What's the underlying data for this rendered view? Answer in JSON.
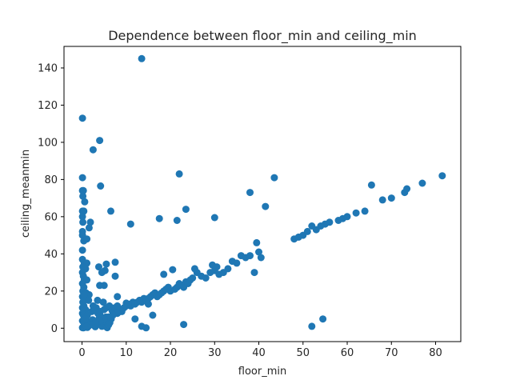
{
  "chart_data": {
    "type": "scatter",
    "title": "Dependence between floor_min and ceiling_min",
    "xlabel": "floor_min",
    "ylabel": "ceiling_meanmin",
    "xlim": [
      -4.08,
      85.7
    ],
    "ylim": [
      -7.2,
      151.6
    ],
    "xticks": [
      0,
      10,
      20,
      30,
      40,
      50,
      60,
      70,
      80
    ],
    "yticks": [
      0,
      20,
      40,
      60,
      80,
      100,
      120,
      140
    ],
    "grid": false,
    "legend": "none",
    "marker_color": "#1f77b4",
    "series": [
      {
        "points": [
          [
            0.1,
            113
          ],
          [
            0.1,
            81
          ],
          [
            0.1,
            74
          ],
          [
            0.3,
            74
          ],
          [
            0.2,
            71
          ],
          [
            0.6,
            68
          ],
          [
            0.1,
            63
          ],
          [
            0.4,
            63
          ],
          [
            0.1,
            60
          ],
          [
            0.2,
            57
          ],
          [
            1.9,
            57
          ],
          [
            0.1,
            52
          ],
          [
            1.6,
            54
          ],
          [
            0.1,
            50
          ],
          [
            0.4,
            47
          ],
          [
            1.1,
            48
          ],
          [
            0.1,
            42
          ],
          [
            0.1,
            37
          ],
          [
            0.5,
            35
          ],
          [
            1.1,
            35
          ],
          [
            0.2,
            33
          ],
          [
            0.8,
            32
          ],
          [
            0.1,
            30
          ],
          [
            0.3,
            28
          ],
          [
            0.5,
            26
          ],
          [
            1.1,
            26
          ],
          [
            0.1,
            24
          ],
          [
            0.4,
            22
          ],
          [
            0.2,
            20
          ],
          [
            0.9,
            19
          ],
          [
            0.1,
            17
          ],
          [
            0.6,
            16
          ],
          [
            0.2,
            14
          ],
          [
            0.4,
            12
          ],
          [
            0.1,
            11
          ],
          [
            0.8,
            10
          ],
          [
            0.1,
            8
          ],
          [
            0.3,
            7
          ],
          [
            0.6,
            6
          ],
          [
            0.9,
            5
          ],
          [
            0.1,
            4
          ],
          [
            0.4,
            3
          ],
          [
            0.7,
            2
          ],
          [
            1,
            1
          ],
          [
            0.1,
            0.3
          ],
          [
            0.3,
            0.2
          ],
          [
            0.6,
            0.5
          ],
          [
            1.2,
            0.4
          ],
          [
            1.5,
            1.2
          ],
          [
            1.8,
            2.5
          ],
          [
            2.1,
            3.5
          ],
          [
            2.4,
            4.5
          ],
          [
            2.7,
            1.5
          ],
          [
            3,
            0.8
          ],
          [
            3.3,
            2
          ],
          [
            3.6,
            3.8
          ],
          [
            3.9,
            5.5
          ],
          [
            4.2,
            6.5
          ],
          [
            4.5,
            1
          ],
          [
            4.8,
            2.8
          ],
          [
            5.1,
            4
          ],
          [
            5.4,
            6
          ],
          [
            5.7,
            0.3
          ],
          [
            6,
            1.8
          ],
          [
            6.3,
            3
          ],
          [
            6.6,
            5
          ],
          [
            6.9,
            7
          ],
          [
            7.2,
            8.5
          ],
          [
            7.5,
            9
          ],
          [
            7.8,
            10
          ],
          [
            2.2,
            9
          ],
          [
            2.8,
            10
          ],
          [
            3.2,
            11
          ],
          [
            3.6,
            8
          ],
          [
            4.1,
            9
          ],
          [
            5,
            10
          ],
          [
            5.5,
            11
          ],
          [
            6.2,
            12
          ],
          [
            6.8,
            9.5
          ],
          [
            7.4,
            11
          ],
          [
            8,
            12
          ],
          [
            8.5,
            9
          ],
          [
            9,
            10
          ],
          [
            9.5,
            11
          ],
          [
            10,
            12
          ],
          [
            10.5,
            13
          ],
          [
            11,
            12
          ],
          [
            11.5,
            14
          ],
          [
            12,
            13
          ],
          [
            12.5,
            14
          ],
          [
            13,
            15
          ],
          [
            13.5,
            14
          ],
          [
            14,
            16
          ],
          [
            14.5,
            15
          ],
          [
            15,
            16
          ],
          [
            15.5,
            17
          ],
          [
            16,
            18
          ],
          [
            16.5,
            19
          ],
          [
            17,
            17
          ],
          [
            17.5,
            18
          ],
          [
            18,
            19
          ],
          [
            18.5,
            20
          ],
          [
            19,
            21
          ],
          [
            19.5,
            22
          ],
          [
            20,
            20
          ],
          [
            21,
            21
          ],
          [
            21.5,
            22
          ],
          [
            22,
            24
          ],
          [
            22.5,
            23
          ],
          [
            23,
            22
          ],
          [
            23.5,
            25
          ],
          [
            24,
            24
          ],
          [
            24.5,
            26
          ],
          [
            25,
            27
          ],
          [
            26,
            30
          ],
          [
            27,
            28
          ],
          [
            28,
            27
          ],
          [
            29,
            30
          ],
          [
            29.5,
            34
          ],
          [
            30,
            31
          ],
          [
            30.5,
            33
          ],
          [
            31,
            29
          ],
          [
            32,
            30
          ],
          [
            33,
            32
          ],
          [
            34,
            36
          ],
          [
            35,
            35
          ],
          [
            36,
            39
          ],
          [
            37,
            38
          ],
          [
            38,
            39
          ],
          [
            39,
            30
          ],
          [
            39.5,
            46
          ],
          [
            40,
            41
          ],
          [
            40.5,
            38
          ],
          [
            48,
            48
          ],
          [
            49,
            49
          ],
          [
            50,
            50
          ],
          [
            51,
            52
          ],
          [
            52,
            55
          ],
          [
            53,
            53
          ],
          [
            54,
            55
          ],
          [
            55,
            56
          ],
          [
            56,
            57
          ],
          [
            58,
            58
          ],
          [
            59,
            59
          ],
          [
            60,
            60
          ],
          [
            62,
            62
          ],
          [
            64,
            63
          ],
          [
            65.5,
            77
          ],
          [
            68,
            69
          ],
          [
            70,
            70
          ],
          [
            73,
            73
          ],
          [
            73.5,
            75
          ],
          [
            77,
            78
          ],
          [
            81.5,
            82
          ],
          [
            2.5,
            96
          ],
          [
            4,
            101
          ],
          [
            4.2,
            76.5
          ],
          [
            6.5,
            63
          ],
          [
            11,
            56
          ],
          [
            13.5,
            145
          ],
          [
            17.5,
            59
          ],
          [
            22,
            83
          ],
          [
            23.5,
            64
          ],
          [
            21.5,
            58
          ],
          [
            30,
            59.5
          ],
          [
            38,
            73
          ],
          [
            41.5,
            65.5
          ],
          [
            43.5,
            81
          ],
          [
            52,
            1
          ],
          [
            54.5,
            5
          ],
          [
            13.5,
            1
          ],
          [
            14.5,
            0.2
          ],
          [
            16,
            7
          ],
          [
            20.5,
            31.5
          ],
          [
            23,
            2
          ],
          [
            18.5,
            29
          ],
          [
            25.5,
            32
          ],
          [
            7.5,
            35.5
          ],
          [
            7.5,
            28
          ],
          [
            5.2,
            31
          ],
          [
            5.5,
            34.5
          ],
          [
            4.5,
            30
          ],
          [
            3.8,
            33
          ],
          [
            4,
            23
          ],
          [
            5,
            23
          ],
          [
            8,
            17
          ],
          [
            10,
            13.5
          ],
          [
            12,
            5
          ],
          [
            15,
            13
          ],
          [
            9,
            9
          ],
          [
            8,
            8
          ],
          [
            7,
            7
          ],
          [
            6,
            6
          ],
          [
            5,
            5
          ],
          [
            4,
            4
          ],
          [
            3,
            3
          ],
          [
            2,
            2
          ],
          [
            1,
            1
          ],
          [
            1.2,
            7
          ],
          [
            1.5,
            15
          ],
          [
            1.6,
            18
          ],
          [
            0.5,
            18
          ],
          [
            0.7,
            5
          ],
          [
            2.5,
            12
          ],
          [
            3.5,
            15
          ],
          [
            4.8,
            14
          ]
        ]
      }
    ]
  }
}
